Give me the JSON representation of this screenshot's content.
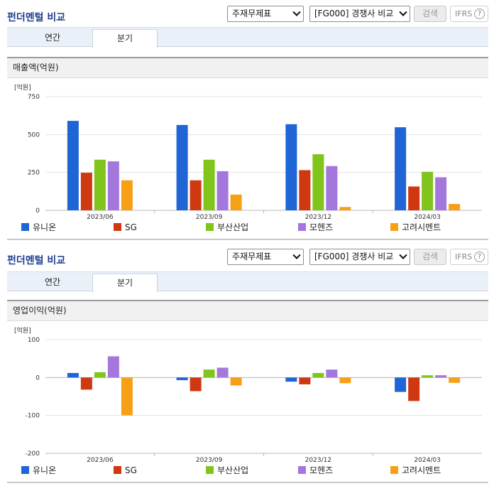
{
  "title": "펀더멘털 비교",
  "controls": {
    "statement_select": "주재무제표",
    "peer_select": "[FG000] 경쟁사 비교",
    "search_label": "검색",
    "ifrs_label": "IFRS",
    "help_glyph": "?"
  },
  "tabs": [
    {
      "label": "연간",
      "active": false
    },
    {
      "label": "분기",
      "active": true
    }
  ],
  "colors": {
    "유니온": "#1f65d6",
    "SG": "#cf3810",
    "부산산업": "#80c41c",
    "모헨즈": "#a477dc",
    "고려시멘트": "#f7a015"
  },
  "chart_data": [
    {
      "type": "bar",
      "title": "매출액(억원)",
      "unit_label": "[억원]",
      "categories": [
        "2023/06",
        "2023/09",
        "2023/12",
        "2024/03"
      ],
      "ylim": [
        0,
        750
      ],
      "yticks": [
        0,
        250,
        500,
        750
      ],
      "grid": true,
      "legend_position": "bottom",
      "series": [
        {
          "name": "유니온",
          "values": [
            590,
            563,
            568,
            548
          ]
        },
        {
          "name": "SG",
          "values": [
            248,
            198,
            265,
            157
          ]
        },
        {
          "name": "부산산업",
          "values": [
            334,
            334,
            370,
            254
          ]
        },
        {
          "name": "모헨즈",
          "values": [
            323,
            258,
            292,
            218
          ]
        },
        {
          "name": "고려시멘트",
          "values": [
            198,
            104,
            22,
            42
          ]
        }
      ]
    },
    {
      "type": "bar",
      "title": "영업이익(억원)",
      "unit_label": "[억원]",
      "categories": [
        "2023/06",
        "2023/09",
        "2023/12",
        "2024/03"
      ],
      "ylim": [
        -200,
        100
      ],
      "yticks": [
        -200,
        -100,
        0,
        100
      ],
      "grid": true,
      "legend_position": "bottom",
      "series": [
        {
          "name": "유니온",
          "values": [
            12,
            -7,
            -11,
            -38
          ]
        },
        {
          "name": "SG",
          "values": [
            -32,
            -36,
            -18,
            -62
          ]
        },
        {
          "name": "부산산업",
          "values": [
            14,
            21,
            12,
            6
          ]
        },
        {
          "name": "모헨즈",
          "values": [
            56,
            26,
            21,
            6
          ]
        },
        {
          "name": "고려시멘트",
          "values": [
            -100,
            -21,
            -15,
            -14
          ]
        }
      ]
    }
  ]
}
